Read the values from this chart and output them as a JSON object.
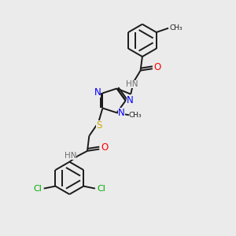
{
  "bg_color": "#ebebeb",
  "bond_color": "#1a1a1a",
  "N_color": "#0000ff",
  "O_color": "#ff0000",
  "S_color": "#ccaa00",
  "Cl_color": "#00aa00",
  "C_color": "#1a1a1a",
  "H_color": "#707070",
  "lw": 1.4,
  "figsize": [
    3.0,
    3.0
  ],
  "dpi": 100,
  "xlim": [
    0,
    10
  ],
  "ylim": [
    0,
    10
  ]
}
